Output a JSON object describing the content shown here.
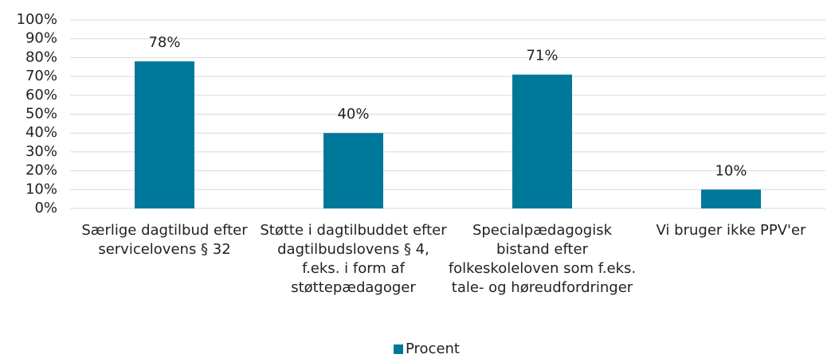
{
  "chart_data": {
    "type": "bar",
    "categories": [
      "Særlige dagtilbud efter servicelovens § 32",
      "Støtte i dagtilbuddet efter dagtilbudslovens § 4, f.eks. i form af støttepædagoger",
      "Specialpædagogisk bistand efter folkeskoleloven som f.eks. tale- og høreudfordringer",
      "Vi bruger ikke PPV'er"
    ],
    "series": [
      {
        "name": "Procent",
        "color": "#00789a",
        "values": [
          78,
          40,
          71,
          10
        ],
        "value_labels": [
          "78%",
          "40%",
          "71%",
          "10%"
        ]
      }
    ],
    "ylim": [
      0,
      100
    ],
    "yticks": [
      {
        "value": 0,
        "label": "0%"
      },
      {
        "value": 10,
        "label": "10%"
      },
      {
        "value": 20,
        "label": "20%"
      },
      {
        "value": 30,
        "label": "30%"
      },
      {
        "value": 40,
        "label": "40%"
      },
      {
        "value": 50,
        "label": "50%"
      },
      {
        "value": 60,
        "label": "60%"
      },
      {
        "value": 70,
        "label": "70%"
      },
      {
        "value": 80,
        "label": "80%"
      },
      {
        "value": 90,
        "label": "90%"
      },
      {
        "value": 100,
        "label": "100%"
      }
    ],
    "grid": true,
    "legend": "bottom"
  }
}
